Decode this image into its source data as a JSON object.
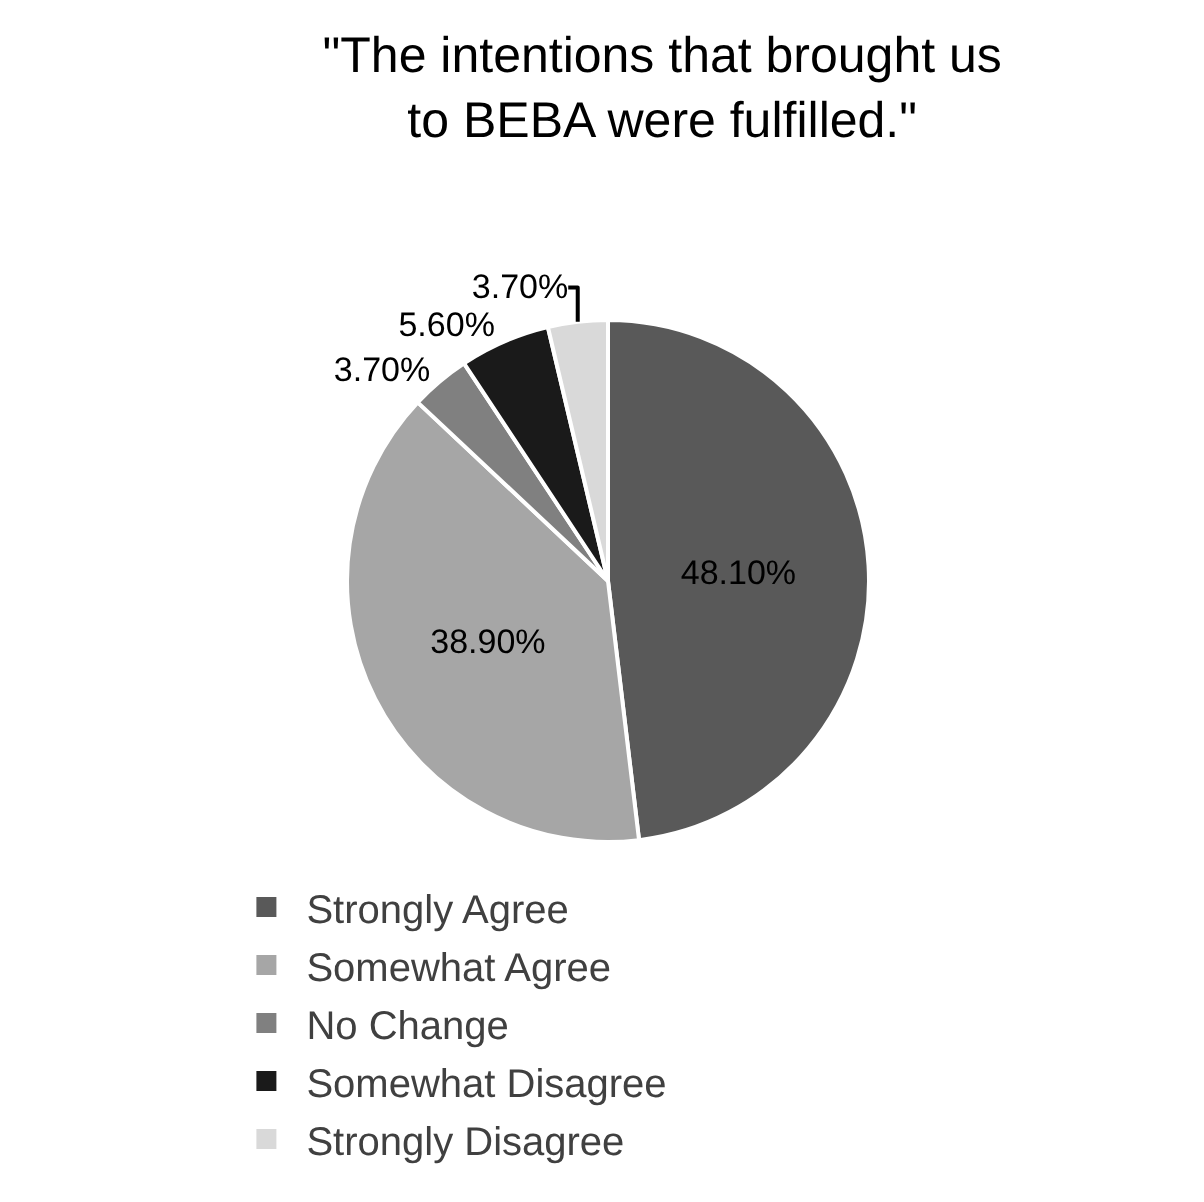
{
  "chart_data": {
    "type": "pie",
    "title": "\"The intentions that brought us to BEBA were fulfilled.\"",
    "categories": [
      "Strongly Agree",
      "Somewhat Agree",
      "No Change",
      "Somewhat Disagree",
      "Strongly Disagree"
    ],
    "values": [
      48.1,
      38.9,
      3.7,
      5.6,
      3.7
    ],
    "value_labels": [
      "48.10%",
      "38.90%",
      "3.70%",
      "5.60%",
      "3.70%"
    ],
    "colors": [
      "#595959",
      "#a6a6a6",
      "#808080",
      "#1a1a1a",
      "#d9d9d9"
    ],
    "legend": "bottom"
  }
}
